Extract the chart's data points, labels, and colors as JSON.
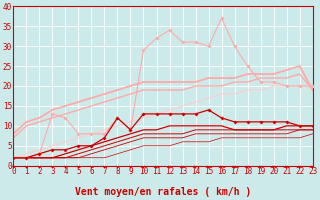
{
  "xlabel": "Vent moyen/en rafales ( km/h )",
  "xlim": [
    0,
    23
  ],
  "ylim": [
    0,
    40
  ],
  "yticks": [
    0,
    5,
    10,
    15,
    20,
    25,
    30,
    35,
    40
  ],
  "xticks": [
    0,
    1,
    2,
    3,
    4,
    5,
    6,
    7,
    8,
    9,
    10,
    11,
    12,
    13,
    14,
    15,
    16,
    17,
    18,
    19,
    20,
    21,
    22,
    23
  ],
  "bg_color": "#cceaea",
  "grid_color": "#aadddd",
  "text_color": "#cc0000",
  "lines": [
    {
      "x": [
        0,
        1,
        2,
        3,
        4,
        5,
        6,
        7,
        8,
        9,
        10,
        11,
        12,
        13,
        14,
        15,
        16,
        17,
        18,
        19,
        20,
        21,
        22,
        23
      ],
      "y": [
        2,
        2,
        3,
        13,
        12,
        8,
        8,
        8,
        12,
        9,
        29,
        32,
        34,
        31,
        31,
        30,
        37,
        30,
        25,
        21,
        21,
        20,
        20,
        20
      ],
      "color": "#ffaaaa",
      "marker": "D",
      "markersize": 2.0,
      "linewidth": 0.8
    },
    {
      "x": [
        0,
        1,
        2,
        3,
        4,
        5,
        6,
        7,
        8,
        9,
        10,
        11,
        12,
        13,
        14,
        15,
        16,
        17,
        18,
        19,
        20,
        21,
        22,
        23
      ],
      "y": [
        8,
        11,
        12,
        14,
        15,
        16,
        17,
        18,
        19,
        20,
        21,
        21,
        21,
        21,
        21,
        22,
        22,
        22,
        23,
        23,
        23,
        24,
        25,
        19
      ],
      "color": "#ffaaaa",
      "marker": null,
      "markersize": 0,
      "linewidth": 1.3
    },
    {
      "x": [
        0,
        1,
        2,
        3,
        4,
        5,
        6,
        7,
        8,
        9,
        10,
        11,
        12,
        13,
        14,
        15,
        16,
        17,
        18,
        19,
        20,
        21,
        22,
        23
      ],
      "y": [
        7,
        10,
        11,
        12,
        13,
        14,
        15,
        16,
        17,
        18,
        19,
        19,
        19,
        19,
        20,
        20,
        20,
        21,
        21,
        22,
        22,
        22,
        23,
        19
      ],
      "color": "#ffaaaa",
      "marker": null,
      "markersize": 0,
      "linewidth": 1.0
    },
    {
      "x": [
        0,
        1,
        2,
        3,
        4,
        5,
        6,
        7,
        8,
        9,
        10,
        11,
        12,
        13,
        14,
        15,
        16,
        17,
        18,
        19,
        20,
        21,
        22,
        23
      ],
      "y": [
        2,
        3,
        4,
        5,
        6,
        7,
        8,
        9,
        10,
        11,
        12,
        13,
        14,
        15,
        16,
        17,
        18,
        18,
        19,
        19,
        20,
        20,
        20,
        20
      ],
      "color": "#ffcccc",
      "marker": null,
      "markersize": 0,
      "linewidth": 0.8
    },
    {
      "x": [
        0,
        1,
        2,
        3,
        4,
        5,
        6,
        7,
        8,
        9,
        10,
        11,
        12,
        13,
        14,
        15,
        16,
        17,
        18,
        19,
        20,
        21,
        22,
        23
      ],
      "y": [
        2,
        2,
        3,
        4,
        4,
        5,
        5,
        7,
        12,
        9,
        13,
        13,
        13,
        13,
        13,
        14,
        12,
        11,
        11,
        11,
        11,
        11,
        10,
        10
      ],
      "color": "#cc0000",
      "marker": "D",
      "markersize": 2.0,
      "linewidth": 0.9
    },
    {
      "x": [
        0,
        1,
        2,
        3,
        4,
        5,
        6,
        7,
        8,
        9,
        10,
        11,
        12,
        13,
        14,
        15,
        16,
        17,
        18,
        19,
        20,
        21,
        22,
        23
      ],
      "y": [
        2,
        2,
        2,
        2,
        3,
        4,
        5,
        6,
        7,
        8,
        9,
        9,
        10,
        10,
        10,
        10,
        10,
        9,
        9,
        9,
        9,
        10,
        10,
        10
      ],
      "color": "#cc0000",
      "marker": null,
      "markersize": 0,
      "linewidth": 0.9
    },
    {
      "x": [
        0,
        1,
        2,
        3,
        4,
        5,
        6,
        7,
        8,
        9,
        10,
        11,
        12,
        13,
        14,
        15,
        16,
        17,
        18,
        19,
        20,
        21,
        22,
        23
      ],
      "y": [
        2,
        2,
        2,
        2,
        2,
        3,
        4,
        5,
        6,
        7,
        8,
        8,
        8,
        8,
        9,
        9,
        9,
        9,
        9,
        9,
        9,
        9,
        9,
        9
      ],
      "color": "#cc0000",
      "marker": null,
      "markersize": 0,
      "linewidth": 0.7
    },
    {
      "x": [
        0,
        1,
        2,
        3,
        4,
        5,
        6,
        7,
        8,
        9,
        10,
        11,
        12,
        13,
        14,
        15,
        16,
        17,
        18,
        19,
        20,
        21,
        22,
        23
      ],
      "y": [
        2,
        2,
        2,
        2,
        2,
        2,
        3,
        4,
        5,
        6,
        7,
        7,
        7,
        7,
        8,
        8,
        8,
        8,
        8,
        8,
        8,
        8,
        9,
        9
      ],
      "color": "#cc0000",
      "marker": null,
      "markersize": 0,
      "linewidth": 0.6
    },
    {
      "x": [
        0,
        1,
        2,
        3,
        4,
        5,
        6,
        7,
        8,
        9,
        10,
        11,
        12,
        13,
        14,
        15,
        16,
        17,
        18,
        19,
        20,
        21,
        22,
        23
      ],
      "y": [
        2,
        2,
        2,
        2,
        2,
        2,
        2,
        2,
        3,
        4,
        5,
        5,
        5,
        6,
        6,
        6,
        7,
        7,
        7,
        7,
        7,
        7,
        7,
        8
      ],
      "color": "#cc0000",
      "marker": null,
      "markersize": 0,
      "linewidth": 0.5
    }
  ],
  "tick_label_fontsize": 5.5,
  "axis_label_fontsize": 7
}
